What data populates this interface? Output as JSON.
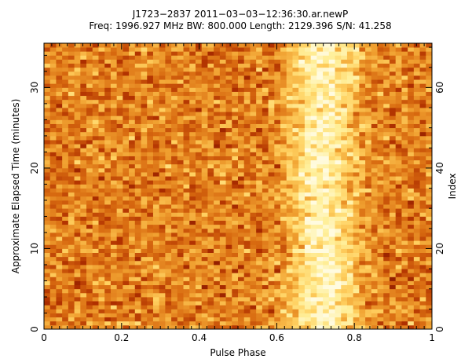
{
  "chart_data": {
    "type": "heatmap",
    "title": "J1723−2837 2011−03−03−12:36:30.ar.newP",
    "subtitle": "Freq: 1996.927 MHz BW: 800.000 Length: 2129.396 S/N: 41.258",
    "xlabel": "Pulse Phase",
    "ylabel": "Approximate Elapsed Time (minutes)",
    "ylabel_right": "Index",
    "xlim": [
      0,
      1
    ],
    "ylim": [
      0,
      35.5
    ],
    "ylim_right": [
      0,
      71
    ],
    "x_ticks": [
      0,
      0.2,
      0.4,
      0.6,
      0.8,
      1
    ],
    "x_tick_labels": [
      "0",
      "0.2",
      "0.4",
      "0.6",
      "0.8",
      "1"
    ],
    "y_ticks": [
      0,
      10,
      20,
      30
    ],
    "y_tick_labels": [
      "0",
      "10",
      "20",
      "30"
    ],
    "y_ticks_right": [
      0,
      20,
      40,
      60
    ],
    "y_tick_labels_right": [
      "0",
      "20",
      "40",
      "60"
    ],
    "colormap": "heat (dark red → orange → yellow → white)",
    "phase_bins": 64,
    "subintegrations": 71,
    "pulse_profile": {
      "peak_phase": 0.72,
      "on_pulse_range": [
        0.62,
        0.82
      ]
    },
    "grid": false
  },
  "colors": {
    "frame": "#000000",
    "background": "#ffffff",
    "cmap": [
      "#3a0000",
      "#7a1000",
      "#b03000",
      "#d86a10",
      "#f0a030",
      "#ffd060",
      "#ffef9a",
      "#fffbe0"
    ]
  }
}
